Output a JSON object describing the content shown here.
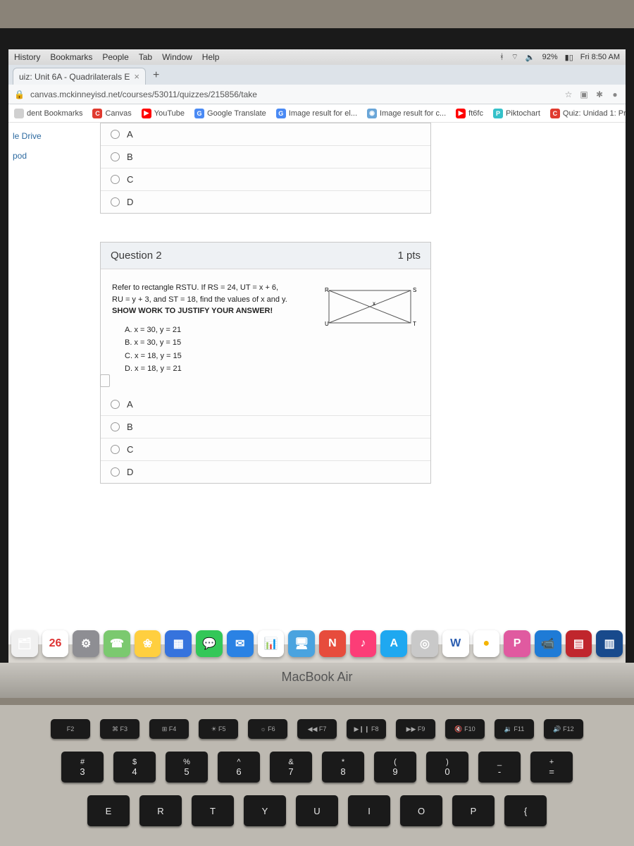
{
  "menubar": {
    "items": [
      "History",
      "Bookmarks",
      "People",
      "Tab",
      "Window",
      "Help"
    ],
    "battery": "92%",
    "clock": "Fri 8:50 AM"
  },
  "tab": {
    "title": "uiz: Unit 6A - Quadrilaterals E"
  },
  "address": {
    "lock": "🔒",
    "url": "canvas.mckinneyisd.net/courses/53011/quizzes/215856/take",
    "star": "☆"
  },
  "bookmarks": [
    {
      "label": "dent Bookmarks",
      "color": "#d0d0d0",
      "glyph": ""
    },
    {
      "label": "Canvas",
      "color": "#e03a2f",
      "glyph": "C"
    },
    {
      "label": "YouTube",
      "color": "#ff0000",
      "glyph": "▶"
    },
    {
      "label": "Google Translate",
      "color": "#4a8af4",
      "glyph": "G"
    },
    {
      "label": "Image result for el...",
      "color": "#4a8af4",
      "glyph": "G"
    },
    {
      "label": "Image result for c...",
      "color": "#6aa6d8",
      "glyph": "◉"
    },
    {
      "label": "ft6fc",
      "color": "#ff0000",
      "glyph": "▶"
    },
    {
      "label": "Piktochart",
      "color": "#35c1c9",
      "glyph": "P"
    },
    {
      "label": "Quiz: Unidad 1: Pr...",
      "color": "#e03a2f",
      "glyph": "C"
    }
  ],
  "leftnav": [
    "le Drive",
    "pod"
  ],
  "prev_options": [
    "A",
    "B",
    "C",
    "D"
  ],
  "q2": {
    "title": "Question 2",
    "points": "1 pts",
    "line1": "Refer to rectangle RSTU. If RS = 24, UT = x + 6,",
    "line2": "RU = y + 3, and ST = 18, find the values of x and y.",
    "line3": "SHOW WORK TO JUSTIFY YOUR ANSWER!",
    "choices": [
      "A.  x = 30, y = 21",
      "B.  x = 30, y = 15",
      "C.  x = 18, y = 15",
      "D.  x = 18, y = 21"
    ],
    "labels": {
      "R": "R",
      "S": "S",
      "T": "T",
      "U": "U",
      "X": "x"
    },
    "options": [
      "A",
      "B",
      "C",
      "D"
    ]
  },
  "dock": [
    {
      "bg": "#f0f0f0",
      "glyph": "🗂"
    },
    {
      "bg": "#ffffff",
      "glyph": "26",
      "text": "#d33"
    },
    {
      "bg": "#8e8e93",
      "glyph": "⚙︎"
    },
    {
      "bg": "#7bc96f",
      "glyph": "☎︎"
    },
    {
      "bg": "#ffcf3f",
      "glyph": "❀"
    },
    {
      "bg": "#3673dd",
      "glyph": "▦"
    },
    {
      "bg": "#33c758",
      "glyph": "💬"
    },
    {
      "bg": "#2a82e4",
      "glyph": "✉︎"
    },
    {
      "bg": "#ffffff",
      "glyph": "📊",
      "text": "#333"
    },
    {
      "bg": "#4aa3df",
      "glyph": "🖥"
    },
    {
      "bg": "#e74c3c",
      "glyph": "N"
    },
    {
      "bg": "#fc3d77",
      "glyph": "♪"
    },
    {
      "bg": "#1fa8f0",
      "glyph": "A"
    },
    {
      "bg": "#c9c9c9",
      "glyph": "◎"
    },
    {
      "bg": "#ffffff",
      "glyph": "W",
      "text": "#2a5db0"
    },
    {
      "bg": "#ffffff",
      "glyph": "●",
      "text": "#f4b400"
    },
    {
      "bg": "#e05aa0",
      "glyph": "P"
    },
    {
      "bg": "#1f7bd6",
      "glyph": "📹"
    },
    {
      "bg": "#c0262d",
      "glyph": "▤"
    },
    {
      "bg": "#184a8c",
      "glyph": "▥"
    }
  ],
  "hinge_label": "MacBook Air",
  "fnrow": [
    "F2",
    "⌘ F3",
    "⊞ F4",
    "☀︎ F5",
    "☼ F6",
    "◀◀ F7",
    "▶❙❙ F8",
    "▶▶ F9",
    "🔇 F10",
    "🔉 F11",
    "🔊 F12"
  ],
  "numrow": [
    {
      "top": "#",
      "bot": "3"
    },
    {
      "top": "$",
      "bot": "4"
    },
    {
      "top": "%",
      "bot": "5"
    },
    {
      "top": "^",
      "bot": "6"
    },
    {
      "top": "&",
      "bot": "7"
    },
    {
      "top": "*",
      "bot": "8"
    },
    {
      "top": "(",
      "bot": "9"
    },
    {
      "top": ")",
      "bot": "0"
    },
    {
      "top": "_",
      "bot": "-"
    },
    {
      "top": "+",
      "bot": "="
    }
  ],
  "letterrow": [
    "E",
    "R",
    "T",
    "Y",
    "U",
    "I",
    "O",
    "P",
    "{"
  ]
}
